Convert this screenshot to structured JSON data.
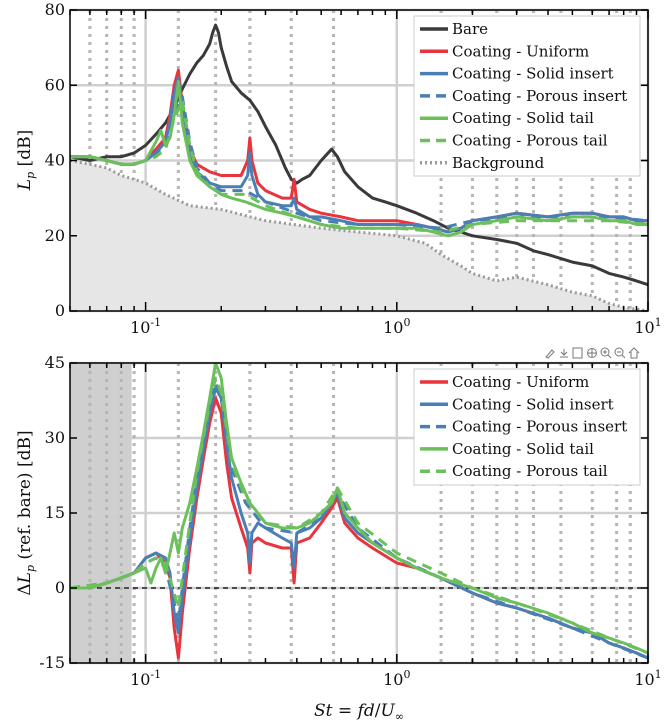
{
  "chart_data": [
    {
      "type": "line",
      "xscale": "log",
      "xlim": [
        0.05,
        10
      ],
      "ylim": [
        0,
        80
      ],
      "ylabel": "L_p [dB]",
      "yticks": [
        0,
        20,
        40,
        60,
        80
      ],
      "xticks": [
        {
          "value": 0.1,
          "base": "10",
          "exp": "-1"
        },
        {
          "value": 1,
          "base": "10",
          "exp": "0"
        },
        {
          "value": 10,
          "base": "10",
          "exp": "1"
        }
      ],
      "grid": true,
      "legend": "top-right",
      "vlines": [
        0.06,
        0.07,
        0.08,
        0.09,
        0.135,
        0.19,
        0.26,
        0.38,
        0.56,
        1.5,
        2.0,
        2.5,
        3.0,
        3.5,
        4.5,
        6.0,
        7.5,
        8.5
      ],
      "series": [
        {
          "name": "Bare",
          "color": "#3a3a3a",
          "dash": "solid",
          "x": [
            0.05,
            0.06,
            0.07,
            0.08,
            0.09,
            0.1,
            0.11,
            0.12,
            0.13,
            0.14,
            0.15,
            0.16,
            0.17,
            0.18,
            0.185,
            0.19,
            0.195,
            0.2,
            0.21,
            0.22,
            0.24,
            0.26,
            0.28,
            0.3,
            0.33,
            0.36,
            0.38,
            0.4,
            0.42,
            0.45,
            0.5,
            0.55,
            0.58,
            0.62,
            0.7,
            0.8,
            0.9,
            1.0,
            1.2,
            1.4,
            1.6,
            1.8,
            2.0,
            2.5,
            3.0,
            3.5,
            4,
            5,
            6,
            7,
            8,
            9,
            10
          ],
          "values": [
            41,
            40,
            41,
            41,
            42,
            44,
            47,
            50,
            54,
            59,
            63,
            66,
            68,
            71,
            74,
            76,
            74,
            70,
            65,
            61,
            58,
            56,
            53,
            49,
            44,
            38,
            35,
            34,
            35,
            36,
            40,
            43,
            41,
            37,
            33,
            30,
            29,
            28,
            26,
            24,
            22,
            21,
            20,
            19,
            18,
            16,
            15,
            13,
            12,
            10,
            9,
            8,
            7
          ]
        },
        {
          "name": "Coating - Uniform",
          "color": "#e8343c",
          "dash": "solid",
          "x": [
            0.05,
            0.06,
            0.07,
            0.08,
            0.09,
            0.1,
            0.11,
            0.12,
            0.125,
            0.13,
            0.135,
            0.14,
            0.15,
            0.16,
            0.18,
            0.2,
            0.22,
            0.24,
            0.255,
            0.26,
            0.265,
            0.28,
            0.3,
            0.35,
            0.38,
            0.39,
            0.4,
            0.45,
            0.5,
            0.6,
            0.7,
            0.8,
            0.9,
            1.0,
            1.2,
            1.4,
            1.6,
            1.8,
            2.0,
            2.5,
            3.0,
            4,
            5,
            6,
            7,
            8,
            9,
            10
          ],
          "values": [
            41,
            41,
            40,
            39,
            39,
            40,
            43,
            46,
            52,
            60,
            64,
            55,
            43,
            39,
            37,
            36,
            36,
            36,
            40,
            46,
            40,
            34,
            32,
            30,
            30,
            35,
            29,
            27,
            26,
            25,
            24,
            24,
            24,
            24,
            23,
            22,
            21,
            22,
            24,
            25,
            26,
            25,
            26,
            26,
            25,
            25,
            24,
            24
          ]
        },
        {
          "name": "Coating - Solid insert",
          "color": "#4a7fb5",
          "dash": "solid",
          "x": [
            0.05,
            0.06,
            0.07,
            0.08,
            0.09,
            0.1,
            0.11,
            0.12,
            0.125,
            0.13,
            0.135,
            0.14,
            0.15,
            0.16,
            0.18,
            0.2,
            0.22,
            0.24,
            0.255,
            0.26,
            0.265,
            0.28,
            0.3,
            0.35,
            0.38,
            0.39,
            0.4,
            0.45,
            0.5,
            0.6,
            0.7,
            0.8,
            0.9,
            1.0,
            1.2,
            1.4,
            1.6,
            1.8,
            2.0,
            2.5,
            3.0,
            4,
            5,
            6,
            7,
            8,
            9,
            10
          ],
          "values": [
            41,
            41,
            40,
            39,
            39,
            40,
            42,
            45,
            50,
            58,
            62,
            53,
            41,
            37,
            34,
            33,
            33,
            33,
            36,
            42,
            36,
            31,
            29,
            28,
            28,
            30,
            27,
            25,
            25,
            24,
            23,
            23,
            23,
            23,
            23,
            22,
            21,
            22,
            24,
            25,
            26,
            25,
            26,
            26,
            25,
            25,
            24,
            24
          ]
        },
        {
          "name": "Coating - Porous insert",
          "color": "#4a7fb5",
          "dash": "dash",
          "x": [
            0.05,
            0.06,
            0.07,
            0.08,
            0.09,
            0.1,
            0.11,
            0.12,
            0.13,
            0.14,
            0.15,
            0.16,
            0.18,
            0.2,
            0.25,
            0.3,
            0.4,
            0.5,
            0.7,
            1.0,
            1.5,
            2.0,
            3.0,
            5,
            7,
            10
          ],
          "values": [
            41,
            41,
            40,
            39,
            39,
            40,
            42,
            44,
            53,
            57,
            45,
            38,
            34,
            32,
            32,
            29,
            26,
            24,
            23,
            23,
            22,
            24,
            25,
            25,
            25,
            24
          ]
        },
        {
          "name": "Coating - Solid tail",
          "color": "#6cc05c",
          "dash": "solid",
          "x": [
            0.05,
            0.06,
            0.07,
            0.08,
            0.09,
            0.1,
            0.11,
            0.115,
            0.12,
            0.125,
            0.13,
            0.135,
            0.14,
            0.15,
            0.16,
            0.18,
            0.2,
            0.22,
            0.25,
            0.3,
            0.35,
            0.4,
            0.5,
            0.6,
            0.7,
            0.8,
            1.0,
            1.2,
            1.4,
            1.6,
            1.8,
            2.0,
            2.5,
            3.0,
            4,
            5,
            6,
            7,
            8,
            9,
            10
          ],
          "values": [
            41,
            41,
            40,
            39,
            39,
            40,
            45,
            48,
            44,
            46,
            52,
            61,
            50,
            40,
            36,
            33,
            31,
            30,
            29,
            27,
            26,
            25,
            23,
            22,
            22,
            22,
            22,
            22,
            21,
            20,
            21,
            23,
            24,
            25,
            24,
            25,
            25,
            24,
            24,
            23,
            23
          ]
        },
        {
          "name": "Coating - Porous tail",
          "color": "#6cc05c",
          "dash": "dash",
          "x": [
            0.05,
            0.06,
            0.07,
            0.08,
            0.09,
            0.1,
            0.11,
            0.12,
            0.13,
            0.14,
            0.15,
            0.16,
            0.18,
            0.2,
            0.25,
            0.3,
            0.4,
            0.5,
            0.7,
            1.0,
            1.5,
            2.0,
            3.0,
            5,
            7,
            10
          ],
          "values": [
            41,
            41,
            40,
            39,
            39,
            40,
            41,
            43,
            51,
            56,
            44,
            37,
            33,
            31,
            31,
            28,
            25,
            23,
            22,
            22,
            21,
            23,
            24,
            24,
            24,
            23
          ]
        },
        {
          "name": "Background",
          "color": "#999999",
          "dash": "dot",
          "x": [
            0.05,
            0.06,
            0.07,
            0.08,
            0.09,
            0.1,
            0.12,
            0.15,
            0.2,
            0.3,
            0.5,
            0.7,
            1.0,
            1.3,
            1.5,
            1.8,
            2.0,
            2.5,
            3.0,
            4,
            5,
            6,
            7,
            8,
            10
          ],
          "values": [
            40,
            39,
            38,
            36,
            35,
            34,
            31,
            28,
            27,
            24,
            22,
            21,
            20,
            18,
            15,
            12,
            10,
            8,
            9,
            7,
            5,
            4,
            2,
            1,
            0
          ]
        }
      ]
    },
    {
      "type": "line",
      "xscale": "log",
      "xlim": [
        0.05,
        10
      ],
      "ylim": [
        -15,
        45
      ],
      "xlabel": "St = fd/U∞",
      "ylabel": "ΔL_p (ref. bare) [dB]",
      "yticks": [
        -15,
        0,
        15,
        30,
        45
      ],
      "xticks": [
        {
          "value": 0.1,
          "base": "10",
          "exp": "-1"
        },
        {
          "value": 1,
          "base": "10",
          "exp": "0"
        },
        {
          "value": 10,
          "base": "10",
          "exp": "1"
        }
      ],
      "grid": true,
      "legend": "top-right",
      "zero_line": true,
      "shaded_region": [
        0.05,
        0.088
      ],
      "vlines": [
        0.06,
        0.07,
        0.08,
        0.09,
        0.135,
        0.19,
        0.26,
        0.38,
        0.56,
        1.5,
        2.0,
        2.5,
        3.0,
        3.5,
        4.5,
        6.0,
        7.5,
        8.5
      ],
      "series": [
        {
          "name": "Coating - Uniform",
          "color": "#e8343c",
          "dash": "solid",
          "x": [
            0.05,
            0.06,
            0.07,
            0.08,
            0.09,
            0.1,
            0.11,
            0.12,
            0.125,
            0.13,
            0.135,
            0.14,
            0.15,
            0.16,
            0.17,
            0.18,
            0.19,
            0.2,
            0.21,
            0.22,
            0.24,
            0.255,
            0.26,
            0.265,
            0.28,
            0.3,
            0.35,
            0.38,
            0.39,
            0.4,
            0.45,
            0.5,
            0.55,
            0.58,
            0.62,
            0.7,
            0.8,
            1.0,
            1.2,
            1.5,
            2.0,
            2.5,
            3.0,
            4,
            5,
            6,
            7,
            8,
            9,
            10
          ],
          "values": [
            0,
            0,
            1,
            2,
            3,
            6,
            7,
            5,
            2,
            -8,
            -14,
            -5,
            8,
            18,
            26,
            33,
            38,
            35,
            25,
            18,
            12,
            8,
            3,
            9,
            10,
            9,
            8,
            8,
            1,
            9,
            10,
            13,
            16,
            18,
            13,
            10,
            8,
            5,
            4,
            2,
            -1,
            -3,
            -4,
            -6,
            -8,
            -9,
            -11,
            -12,
            -13,
            -14
          ]
        },
        {
          "name": "Coating - Solid insert",
          "color": "#4a7fb5",
          "dash": "solid",
          "x": [
            0.05,
            0.06,
            0.07,
            0.08,
            0.09,
            0.1,
            0.11,
            0.12,
            0.125,
            0.13,
            0.135,
            0.14,
            0.15,
            0.16,
            0.17,
            0.18,
            0.19,
            0.2,
            0.21,
            0.22,
            0.24,
            0.255,
            0.26,
            0.265,
            0.28,
            0.3,
            0.35,
            0.38,
            0.39,
            0.4,
            0.45,
            0.5,
            0.55,
            0.58,
            0.62,
            0.7,
            0.8,
            1.0,
            1.2,
            1.5,
            2.0,
            2.5,
            3.0,
            4,
            5,
            6,
            7,
            8,
            9,
            10
          ],
          "values": [
            0,
            0,
            1,
            2,
            3,
            6,
            7,
            6,
            3,
            -5,
            -9,
            -2,
            10,
            20,
            28,
            35,
            40,
            38,
            29,
            22,
            15,
            11,
            5,
            11,
            13,
            12,
            10,
            9,
            4,
            11,
            12,
            14,
            17,
            19,
            14,
            11,
            9,
            6,
            4,
            2,
            -1,
            -3,
            -4,
            -6,
            -8,
            -9,
            -11,
            -12,
            -13,
            -14
          ]
        },
        {
          "name": "Coating - Porous insert",
          "color": "#4a7fb5",
          "dash": "dash",
          "x": [
            0.05,
            0.07,
            0.09,
            0.1,
            0.11,
            0.12,
            0.13,
            0.135,
            0.14,
            0.15,
            0.16,
            0.18,
            0.19,
            0.2,
            0.22,
            0.25,
            0.3,
            0.4,
            0.5,
            0.58,
            0.7,
            1.0,
            1.5,
            2.0,
            3.0,
            5,
            7,
            10
          ],
          "values": [
            0,
            1,
            3,
            5,
            6,
            4,
            -3,
            -7,
            0,
            12,
            22,
            36,
            41,
            38,
            24,
            17,
            12,
            11,
            14,
            19,
            12,
            6,
            2,
            -1,
            -4,
            -8,
            -11,
            -14
          ]
        },
        {
          "name": "Coating - Solid tail",
          "color": "#6cc05c",
          "dash": "solid",
          "x": [
            0.05,
            0.06,
            0.07,
            0.08,
            0.09,
            0.1,
            0.105,
            0.11,
            0.115,
            0.12,
            0.125,
            0.13,
            0.135,
            0.14,
            0.15,
            0.16,
            0.17,
            0.18,
            0.19,
            0.2,
            0.21,
            0.22,
            0.24,
            0.26,
            0.28,
            0.3,
            0.35,
            0.4,
            0.45,
            0.5,
            0.55,
            0.58,
            0.62,
            0.7,
            0.8,
            1.0,
            1.2,
            1.5,
            2.0,
            2.5,
            3.0,
            4,
            5,
            6,
            7,
            8,
            9,
            10
          ],
          "values": [
            0,
            0,
            1,
            2,
            3,
            4,
            1,
            4,
            6,
            3,
            7,
            11,
            7,
            12,
            17,
            24,
            31,
            38,
            45,
            42,
            33,
            26,
            21,
            17,
            15,
            13,
            12,
            12,
            13,
            15,
            17,
            20,
            15,
            12,
            9,
            6,
            4,
            2,
            0,
            -2,
            -3,
            -5,
            -7,
            -9,
            -10,
            -11,
            -12,
            -13
          ]
        },
        {
          "name": "Coating - Porous tail",
          "color": "#6cc05c",
          "dash": "dash",
          "x": [
            0.05,
            0.07,
            0.09,
            0.1,
            0.11,
            0.12,
            0.13,
            0.135,
            0.14,
            0.15,
            0.16,
            0.18,
            0.19,
            0.2,
            0.22,
            0.25,
            0.3,
            0.4,
            0.5,
            0.58,
            0.7,
            1.0,
            1.5,
            2.0,
            3.0,
            5,
            7,
            10
          ],
          "values": [
            0,
            1,
            3,
            5,
            6,
            5,
            -1,
            -4,
            2,
            13,
            23,
            37,
            42,
            39,
            25,
            18,
            13,
            12,
            15,
            20,
            13,
            7,
            3,
            0,
            -3,
            -7,
            -10,
            -13
          ]
        }
      ]
    }
  ]
}
